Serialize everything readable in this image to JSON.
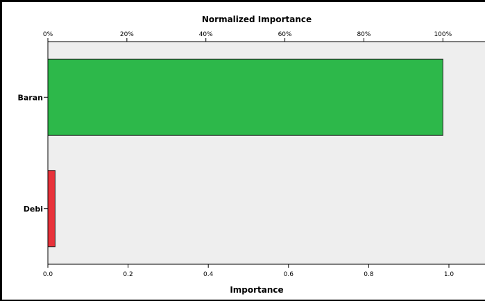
{
  "chart_data": {
    "type": "bar",
    "orientation": "horizontal",
    "categories": [
      "Baran",
      "Debi"
    ],
    "values": [
      0.985,
      0.018
    ],
    "colors": [
      "#2db84a",
      "#e8323a"
    ],
    "xlabel": "Importance",
    "x2label": "Normalized Importance",
    "xlim": [
      0,
      1.09
    ],
    "xticks": [
      0.0,
      0.2,
      0.4,
      0.6,
      0.8,
      1.0
    ],
    "xtick_labels": [
      "0.0",
      "0.2",
      "0.4",
      "0.6",
      "0.8",
      "1.0"
    ],
    "x2ticks": [
      0.0,
      0.197,
      0.394,
      0.591,
      0.788,
      0.985
    ],
    "x2tick_labels": [
      "0%",
      "20%",
      "40%",
      "60%",
      "80%",
      "100%"
    ],
    "plot_background": "#eeeeee",
    "grid": false,
    "legend": "none"
  }
}
